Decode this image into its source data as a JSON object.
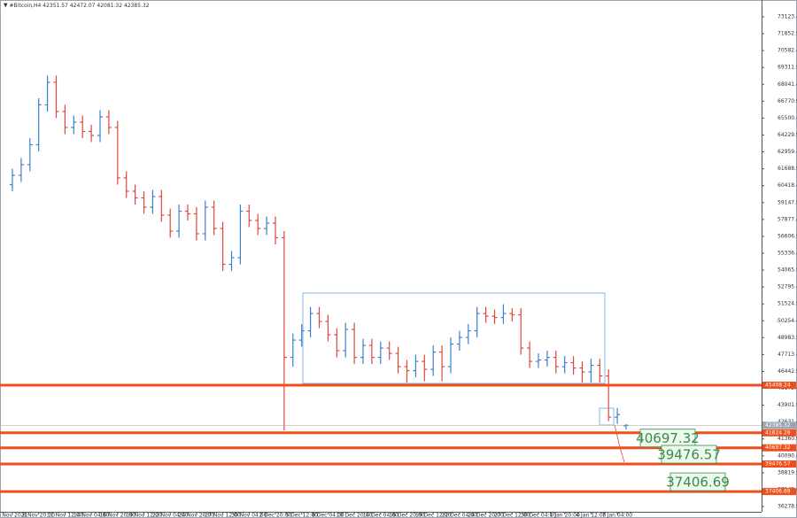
{
  "chart_data": {
    "type": "ohlc",
    "title": "#Bitcoin,H4",
    "up_color": "#3d7fd0",
    "down_color": "#e0473c",
    "level_color": "#f04e1a",
    "current_color": "#9aa6b2",
    "categories": [
      "6 Nov 2021",
      null,
      null,
      "8 Nov 20:00",
      null,
      null,
      "11 Nov 12:00",
      null,
      null,
      "14 Nov 04:00",
      null,
      null,
      "16 Nov 20:00",
      null,
      null,
      "19 Nov 12:00",
      null,
      null,
      "22 Nov 04:00",
      null,
      null,
      "24 Nov 20:00",
      null,
      null,
      "27 Nov 12:00",
      null,
      null,
      "30 Nov 04:00",
      null,
      null,
      "2 Dec 20:00",
      null,
      null,
      "5 Dec 12:00",
      null,
      null,
      "8 Dec 04:00",
      null,
      null,
      "10 Dec 20:00",
      null,
      null,
      "14 Dec 04:00",
      null,
      null,
      "16 Dec 20:00",
      null,
      null,
      "19 Dec 12:00",
      null,
      null,
      "22 Dec 04:00",
      null,
      null,
      "24 Dec 20:00",
      null,
      null,
      "27 Dec 12:00",
      null,
      null,
      "30 Dec 04:00",
      null,
      null,
      "1 Jan 20:00",
      null,
      null,
      "4 Jan 12:00",
      null,
      null,
      "7 Jan 04:00",
      null
    ],
    "bars": [
      [
        60500,
        61700,
        60000,
        61200
      ],
      [
        61200,
        62500,
        60700,
        62000
      ],
      [
        62000,
        64000,
        61500,
        63500
      ],
      [
        63500,
        67000,
        63000,
        66500
      ],
      [
        66500,
        68700,
        66000,
        68200
      ],
      [
        68200,
        68700,
        65500,
        66000
      ],
      [
        66000,
        66500,
        64300,
        64800
      ],
      [
        64800,
        65700,
        64300,
        65200
      ],
      [
        65200,
        65700,
        64000,
        64500
      ],
      [
        64500,
        65000,
        63700,
        64200
      ],
      [
        64200,
        66100,
        63700,
        65600
      ],
      [
        65600,
        66100,
        64300,
        64800
      ],
      [
        64800,
        65300,
        60500,
        61000
      ],
      [
        61000,
        61500,
        59500,
        60000
      ],
      [
        60000,
        60500,
        59000,
        59500
      ],
      [
        59500,
        60000,
        58300,
        58800
      ],
      [
        58800,
        60100,
        58300,
        59600
      ],
      [
        59600,
        60100,
        57700,
        58200
      ],
      [
        58200,
        58700,
        56500,
        57000
      ],
      [
        57000,
        59000,
        56500,
        58500
      ],
      [
        58500,
        59000,
        57800,
        58300
      ],
      [
        58300,
        58800,
        56300,
        56800
      ],
      [
        56800,
        59300,
        56300,
        58800
      ],
      [
        58800,
        59300,
        56700,
        57200
      ],
      [
        57200,
        57700,
        54000,
        54500
      ],
      [
        54500,
        55500,
        54000,
        55000
      ],
      [
        55000,
        59000,
        54500,
        58500
      ],
      [
        58500,
        59000,
        57300,
        57800
      ],
      [
        57800,
        58300,
        56700,
        57200
      ],
      [
        57200,
        58100,
        56700,
        57600
      ],
      [
        57600,
        58100,
        56000,
        56500
      ],
      [
        56500,
        57000,
        42000,
        47500
      ],
      [
        47500,
        49300,
        46800,
        48800
      ],
      [
        48800,
        50000,
        48300,
        49500
      ],
      [
        49500,
        51300,
        49000,
        50800
      ],
      [
        50800,
        51300,
        49700,
        50200
      ],
      [
        50200,
        50700,
        48700,
        49200
      ],
      [
        49200,
        49700,
        47500,
        48000
      ],
      [
        48000,
        50100,
        47500,
        49600
      ],
      [
        49600,
        50100,
        47000,
        47500
      ],
      [
        47500,
        48900,
        47000,
        48400
      ],
      [
        48400,
        48900,
        47000,
        47500
      ],
      [
        47500,
        48700,
        47000,
        48200
      ],
      [
        48200,
        48700,
        47300,
        47800
      ],
      [
        47800,
        48300,
        46300,
        46800
      ],
      [
        46800,
        47300,
        45600,
        46500
      ],
      [
        46500,
        47700,
        46000,
        47200
      ],
      [
        47200,
        47700,
        45700,
        46600
      ],
      [
        46600,
        48400,
        46100,
        47900
      ],
      [
        47900,
        48400,
        45700,
        46800
      ],
      [
        46800,
        49000,
        46300,
        48500
      ],
      [
        48500,
        49500,
        48000,
        49000
      ],
      [
        49000,
        50000,
        48500,
        49500
      ],
      [
        49500,
        51300,
        49000,
        50800
      ],
      [
        50800,
        51300,
        50100,
        50600
      ],
      [
        50600,
        51100,
        50000,
        50500
      ],
      [
        50500,
        51500,
        50000,
        50800
      ],
      [
        50800,
        51200,
        50200,
        50700
      ],
      [
        50700,
        51200,
        47700,
        48200
      ],
      [
        48200,
        48700,
        46700,
        47200
      ],
      [
        47200,
        47800,
        46700,
        47300
      ],
      [
        47300,
        48000,
        46800,
        47500
      ],
      [
        47500,
        48000,
        46300,
        46800
      ],
      [
        46800,
        47600,
        46300,
        47100
      ],
      [
        47100,
        47600,
        46200,
        46700
      ],
      [
        46700,
        47200,
        45600,
        46400
      ],
      [
        46400,
        47400,
        45600,
        46900
      ],
      [
        46900,
        47400,
        45600,
        46100
      ],
      [
        46100,
        46600,
        42700,
        43000
      ],
      [
        43000,
        43700,
        42500,
        43200
      ],
      [
        42351.57,
        42472.07,
        42081.32,
        42385.32
      ]
    ],
    "ylim": [
      35881,
      74189
    ],
    "yticks": [
      {
        "value": 73123.4,
        "label": "73123.40"
      },
      {
        "value": 71852.9,
        "label": "71852.90"
      },
      {
        "value": 70582.4,
        "label": "70582.40"
      },
      {
        "value": 69311.9,
        "label": "69311.90"
      },
      {
        "value": 68041.4,
        "label": "68041.40"
      },
      {
        "value": 66770.9,
        "label": "66770.90"
      },
      {
        "value": 65500.4,
        "label": "65500.40"
      },
      {
        "value": 64229.9,
        "label": "64229.90"
      },
      {
        "value": 62959.4,
        "label": "62959.40"
      },
      {
        "value": 61688.9,
        "label": "61688.90"
      },
      {
        "value": 60418.4,
        "label": "60418.40"
      },
      {
        "value": 59147.9,
        "label": "59147.90"
      },
      {
        "value": 57877.4,
        "label": "57877.40"
      },
      {
        "value": 56606.9,
        "label": "56606.90"
      },
      {
        "value": 55336.4,
        "label": "55336.40"
      },
      {
        "value": 54065.9,
        "label": "54065.90"
      },
      {
        "value": 52795.4,
        "label": "52795.40"
      },
      {
        "value": 51524.9,
        "label": "51524.90"
      },
      {
        "value": 50254.4,
        "label": "50254.40"
      },
      {
        "value": 48983.9,
        "label": "48983.90"
      },
      {
        "value": 47713.4,
        "label": "47713.40"
      },
      {
        "value": 46442.9,
        "label": "46442.90"
      },
      {
        "value": 45172.4,
        "label": "45172.40"
      },
      {
        "value": 43901.9,
        "label": "43901.90"
      },
      {
        "value": 42631.4,
        "label": "42631.40"
      },
      {
        "value": 41360.9,
        "label": "41360.90"
      },
      {
        "value": 40090.4,
        "label": "40090.40"
      },
      {
        "value": 38819.9,
        "label": "38819.90"
      },
      {
        "value": 37549.4,
        "label": "37549.40"
      },
      {
        "value": 36278.9,
        "label": "36278.90"
      }
    ],
    "levels": [
      45408.24,
      41824.28,
      40697.32,
      39476.57,
      37406.69
    ],
    "annotated_levels": [
      2,
      3,
      4
    ]
  }
}
